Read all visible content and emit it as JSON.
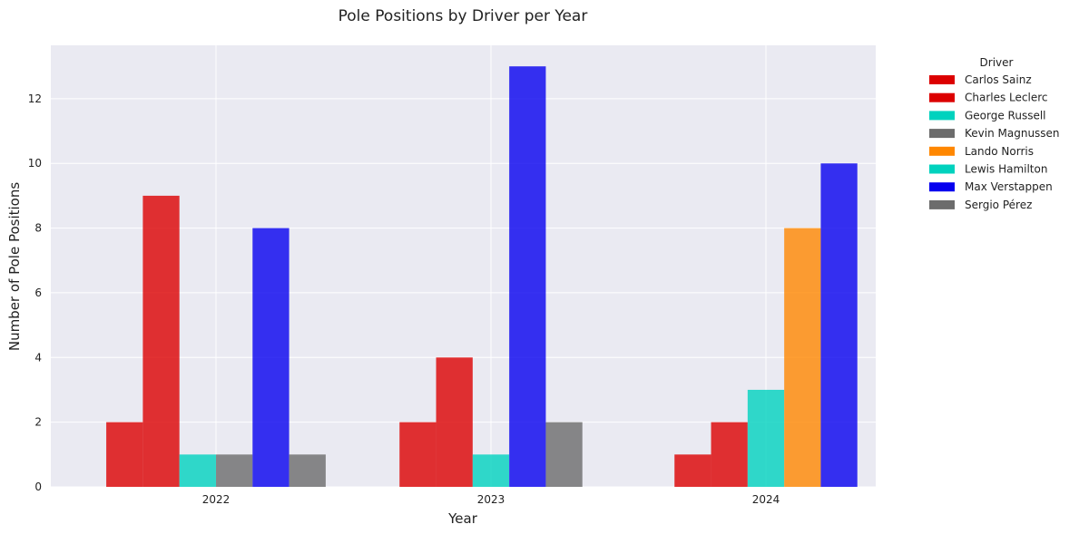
{
  "chart_data": {
    "type": "bar",
    "title": "Pole Positions by Driver per Year",
    "xlabel": "Year",
    "ylabel": "Number of Pole Positions",
    "categories": [
      "2022",
      "2023",
      "2024"
    ],
    "ylim": [
      0,
      13.65
    ],
    "yticks": [
      0,
      2,
      4,
      6,
      8,
      10,
      12
    ],
    "grid": true,
    "legend": {
      "title": "Driver",
      "placement": "outside-top-right"
    },
    "series": [
      {
        "name": "Carlos Sainz",
        "color": "#dc0000",
        "values": [
          2,
          2,
          1
        ]
      },
      {
        "name": "Charles Leclerc",
        "color": "#dc0000",
        "values": [
          9,
          4,
          2
        ]
      },
      {
        "name": "George Russell",
        "color": "#00d2be",
        "values": [
          1,
          1,
          3
        ]
      },
      {
        "name": "Kevin Magnussen",
        "color": "#6c6c6c",
        "values": [
          1,
          null,
          null
        ]
      },
      {
        "name": "Lando Norris",
        "color": "#ff8700",
        "values": [
          null,
          null,
          8
        ]
      },
      {
        "name": "Lewis Hamilton",
        "color": "#00d2be",
        "values": [
          null,
          null,
          null
        ]
      },
      {
        "name": "Max Verstappen",
        "color": "#0600ef",
        "values": [
          8,
          13,
          10
        ]
      },
      {
        "name": "Sergio Pérez",
        "color": "#6c6c6c",
        "values": [
          1,
          2,
          null
        ]
      }
    ]
  }
}
